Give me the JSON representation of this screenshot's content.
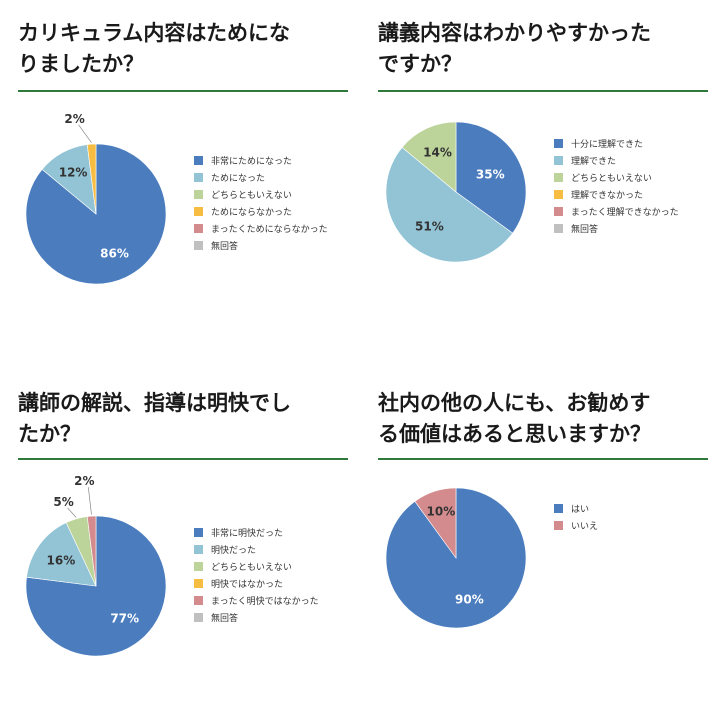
{
  "colors": {
    "blue": "#4a7cbe",
    "lightblue": "#92c4d6",
    "green": "#bcd39a",
    "yellow": "#f6bd42",
    "pink": "#d38b8e",
    "gray": "#c0c0c0",
    "rule": "#2f7a3b"
  },
  "chart_data": [
    {
      "type": "pie",
      "title": "カリキュラム内容はためにな\nりましたか？",
      "legend": [
        "非常にためになった",
        "ためになった",
        "どちらともいえない",
        "ためにならなかった",
        "まったくためにならなかった",
        "無回答"
      ],
      "colors": [
        "blue",
        "lightblue",
        "green",
        "yellow",
        "pink",
        "gray"
      ],
      "values": [
        86,
        12,
        0,
        2,
        0,
        0
      ],
      "labels": [
        "86%",
        "12%",
        "",
        "2%",
        "",
        ""
      ]
    },
    {
      "type": "pie",
      "title": "講義内容はわかりやすかった\nですか？",
      "legend": [
        "十分に理解できた",
        "理解できた",
        "どちらともいえない",
        "理解できなかった",
        "まったく理解できなかった",
        "無回答"
      ],
      "colors": [
        "blue",
        "lightblue",
        "green",
        "yellow",
        "pink",
        "gray"
      ],
      "values": [
        35,
        51,
        14,
        0,
        0,
        0
      ],
      "labels": [
        "35%",
        "51%",
        "14%",
        "",
        "",
        ""
      ]
    },
    {
      "type": "pie",
      "title": "講師の解説、指導は明快でし\nたか？",
      "legend": [
        "非常に明快だった",
        "明快だった",
        "どちらともいえない",
        "明快ではなかった",
        "まったく明快ではなかった",
        "無回答"
      ],
      "colors": [
        "blue",
        "lightblue",
        "green",
        "yellow",
        "pink",
        "gray"
      ],
      "values": [
        77,
        16,
        5,
        0,
        2,
        0
      ],
      "labels": [
        "77%",
        "16%",
        "5%",
        "",
        "2%",
        ""
      ]
    },
    {
      "type": "pie",
      "title": "社内の他の人にも、お勧めす\nる価値はあると思いますか？",
      "legend": [
        "はい",
        "いいえ"
      ],
      "colors": [
        "blue",
        "pink"
      ],
      "values": [
        90,
        10
      ],
      "labels": [
        "90%",
        "10%"
      ]
    }
  ]
}
